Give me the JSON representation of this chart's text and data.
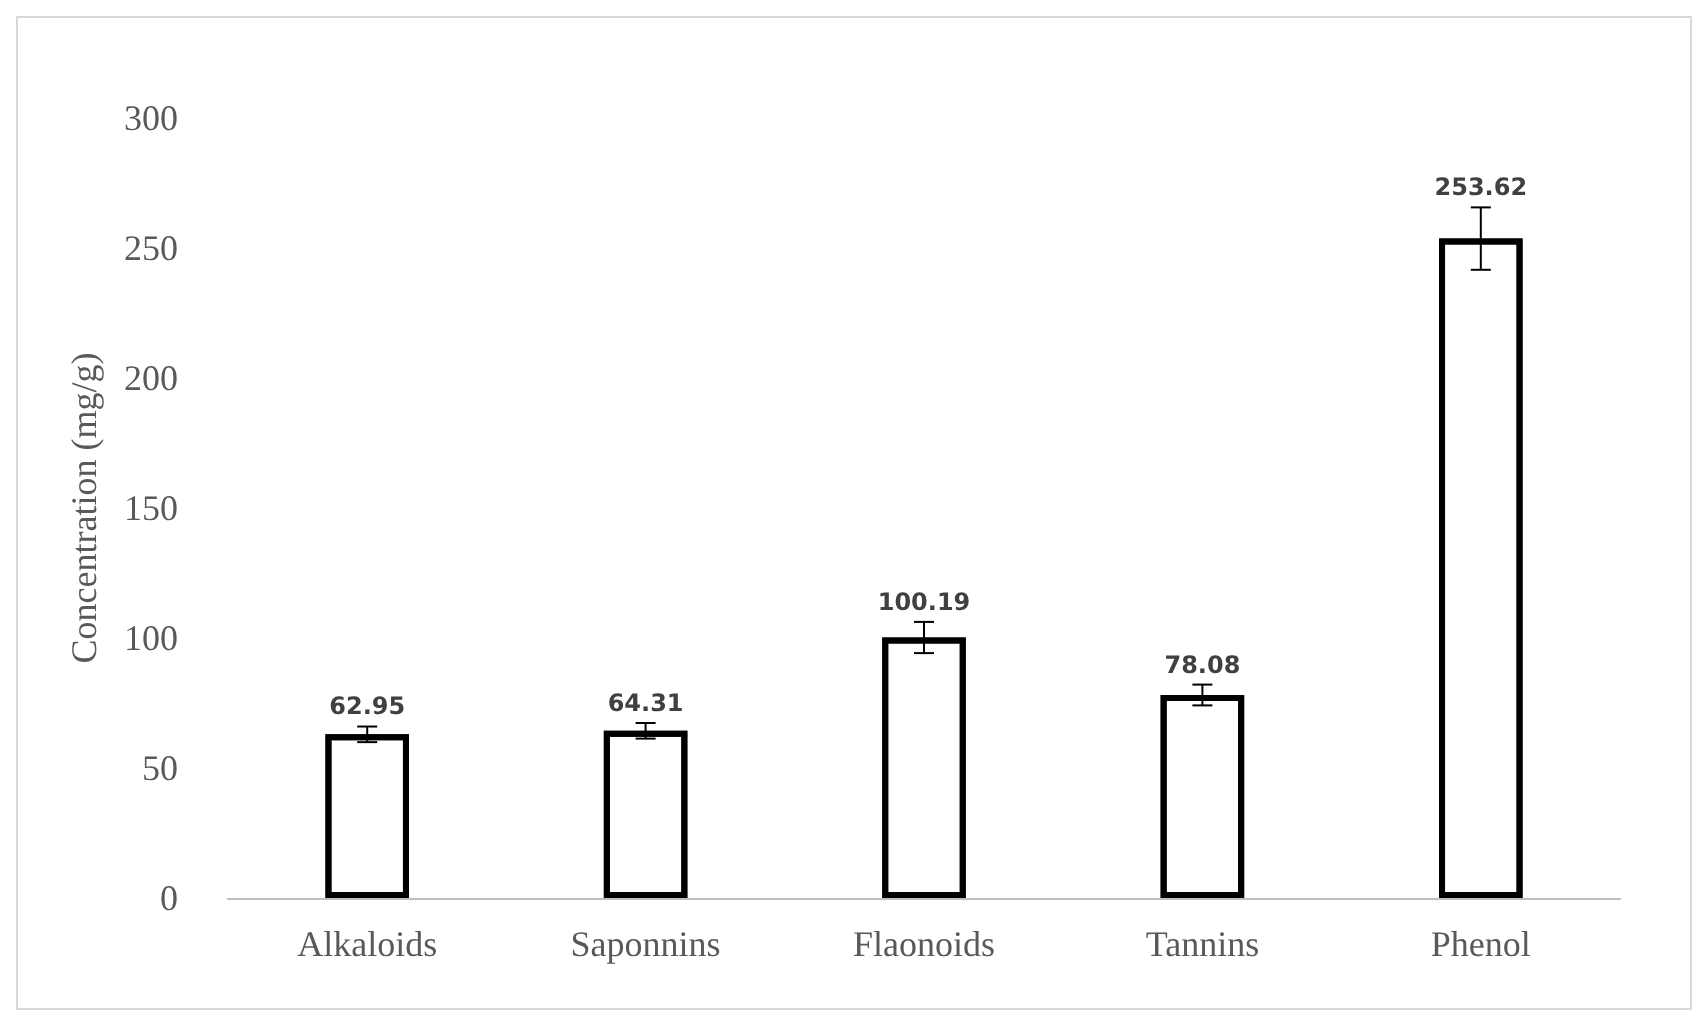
{
  "chart_data": {
    "type": "bar",
    "ylabel": "Concentration (mg/g)",
    "categories": [
      "Alkaloids",
      "Saponnins",
      "Flaonoids",
      "Tannins",
      "Phenol"
    ],
    "values": [
      62.95,
      64.31,
      100.19,
      78.08,
      253.62
    ],
    "errors": [
      3,
      3,
      6,
      4,
      12
    ],
    "color": "#000000",
    "ylim": [
      0,
      300
    ],
    "yticks": [
      0,
      50,
      100,
      150,
      200,
      250,
      300
    ],
    "grid": false,
    "data_labels": true
  }
}
